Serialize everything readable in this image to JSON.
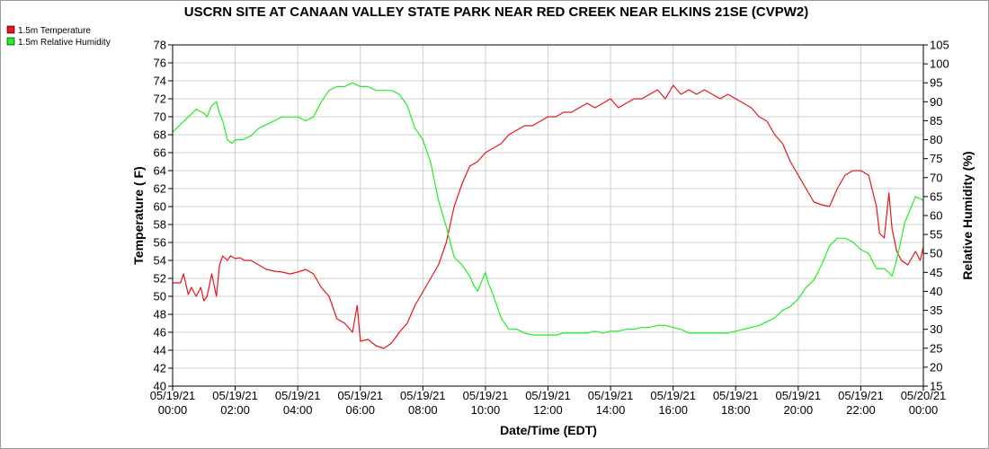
{
  "chart_data": {
    "type": "line",
    "title": "USCRN SITE AT CANAAN VALLEY STATE PARK NEAR RED CREEK NEAR ELKINS 21SE (CVPW2)",
    "xlabel": "Date/Time (EDT)",
    "ylabel_left": "Temperature ( F)",
    "ylabel_right": "Relative Humidity (%)",
    "ylim_left": [
      40,
      78
    ],
    "ylim_right": [
      15,
      105
    ],
    "yticks_left": [
      40,
      42,
      44,
      46,
      48,
      50,
      52,
      54,
      56,
      58,
      60,
      62,
      64,
      66,
      68,
      70,
      72,
      74,
      76,
      78
    ],
    "yticks_right": [
      15,
      20,
      25,
      30,
      35,
      40,
      45,
      50,
      55,
      60,
      65,
      70,
      75,
      80,
      85,
      90,
      95,
      100,
      105
    ],
    "xlim": [
      0,
      24
    ],
    "x_unit": "hours since 05/19/21 00:00",
    "x_tick_labels": [
      {
        "date": "05/19/21",
        "time": "00:00"
      },
      {
        "date": "05/19/21",
        "time": "02:00"
      },
      {
        "date": "05/19/21",
        "time": "04:00"
      },
      {
        "date": "05/19/21",
        "time": "06:00"
      },
      {
        "date": "05/19/21",
        "time": "08:00"
      },
      {
        "date": "05/19/21",
        "time": "10:00"
      },
      {
        "date": "05/19/21",
        "time": "12:00"
      },
      {
        "date": "05/19/21",
        "time": "14:00"
      },
      {
        "date": "05/19/21",
        "time": "16:00"
      },
      {
        "date": "05/19/21",
        "time": "18:00"
      },
      {
        "date": "05/19/21",
        "time": "20:00"
      },
      {
        "date": "05/19/21",
        "time": "22:00"
      },
      {
        "date": "05/20/21",
        "time": "00:00"
      }
    ],
    "grid": true,
    "legend_position": "top-left",
    "series": [
      {
        "name": "1.5m Temperature",
        "axis": "left",
        "color": "#e8141a",
        "x": [
          0.0,
          0.25,
          0.35,
          0.5,
          0.6,
          0.75,
          0.9,
          1.0,
          1.1,
          1.25,
          1.4,
          1.5,
          1.6,
          1.75,
          1.85,
          2.0,
          2.15,
          2.3,
          2.5,
          2.75,
          3.0,
          3.25,
          3.5,
          3.75,
          4.0,
          4.25,
          4.5,
          4.75,
          5.0,
          5.25,
          5.5,
          5.75,
          5.9,
          6.0,
          6.25,
          6.5,
          6.75,
          7.0,
          7.25,
          7.5,
          7.75,
          8.0,
          8.25,
          8.5,
          8.75,
          9.0,
          9.25,
          9.5,
          9.75,
          10.0,
          10.25,
          10.5,
          10.75,
          11.0,
          11.25,
          11.5,
          11.75,
          12.0,
          12.25,
          12.5,
          12.75,
          13.0,
          13.25,
          13.5,
          13.75,
          14.0,
          14.25,
          14.5,
          14.75,
          15.0,
          15.25,
          15.5,
          15.75,
          16.0,
          16.25,
          16.5,
          16.75,
          17.0,
          17.25,
          17.5,
          17.75,
          18.0,
          18.25,
          18.5,
          18.75,
          19.0,
          19.25,
          19.5,
          19.75,
          20.0,
          20.25,
          20.5,
          20.75,
          21.0,
          21.25,
          21.5,
          21.75,
          22.0,
          22.25,
          22.5,
          22.6,
          22.75,
          22.9,
          23.0,
          23.15,
          23.3,
          23.5,
          23.75,
          23.9,
          24.0
        ],
        "values": [
          51.5,
          51.5,
          52.5,
          50.2,
          51.0,
          50.0,
          51.0,
          49.5,
          50.0,
          52.5,
          50.0,
          53.5,
          54.5,
          54.0,
          54.5,
          54.2,
          54.3,
          54.0,
          54.0,
          53.5,
          53.0,
          52.8,
          52.7,
          52.5,
          52.7,
          53.0,
          52.5,
          51.0,
          50.0,
          47.5,
          47.0,
          46.0,
          49.0,
          45.0,
          45.2,
          44.5,
          44.2,
          44.8,
          46.0,
          47.0,
          49.0,
          50.5,
          52.0,
          53.5,
          56.0,
          60.0,
          62.5,
          64.5,
          65.0,
          66.0,
          66.5,
          67.0,
          68.0,
          68.5,
          69.0,
          69.0,
          69.5,
          70.0,
          70.0,
          70.5,
          70.5,
          71.0,
          71.5,
          71.0,
          71.5,
          72.0,
          71.0,
          71.5,
          72.0,
          72.0,
          72.5,
          73.0,
          72.0,
          73.5,
          72.5,
          73.0,
          72.5,
          73.0,
          72.5,
          72.0,
          72.5,
          72.0,
          71.5,
          71.0,
          70.0,
          69.5,
          68.0,
          67.0,
          65.0,
          63.5,
          62.0,
          60.5,
          60.2,
          60.0,
          62.0,
          63.5,
          64.0,
          64.0,
          63.5,
          60.0,
          57.0,
          56.5,
          61.5,
          57.5,
          55.0,
          54.0,
          53.5,
          55.0,
          54.0,
          55.5
        ]
      },
      {
        "name": "1.5m Relative Humidity",
        "axis": "right",
        "color": "#22ee22",
        "x": [
          0.0,
          0.25,
          0.5,
          0.75,
          1.0,
          1.1,
          1.25,
          1.4,
          1.5,
          1.6,
          1.75,
          1.9,
          2.0,
          2.25,
          2.5,
          2.75,
          3.0,
          3.25,
          3.5,
          3.75,
          4.0,
          4.25,
          4.5,
          4.75,
          5.0,
          5.25,
          5.5,
          5.75,
          6.0,
          6.25,
          6.5,
          6.75,
          7.0,
          7.25,
          7.5,
          7.75,
          8.0,
          8.25,
          8.5,
          8.75,
          9.0,
          9.25,
          9.5,
          9.6,
          9.75,
          9.9,
          10.0,
          10.1,
          10.25,
          10.5,
          10.75,
          11.0,
          11.25,
          11.5,
          11.75,
          12.0,
          12.25,
          12.5,
          12.75,
          13.0,
          13.25,
          13.5,
          13.75,
          14.0,
          14.25,
          14.5,
          14.75,
          15.0,
          15.25,
          15.5,
          15.75,
          16.0,
          16.25,
          16.5,
          16.75,
          17.0,
          17.25,
          17.5,
          17.75,
          18.0,
          18.25,
          18.5,
          18.75,
          19.0,
          19.25,
          19.5,
          19.75,
          20.0,
          20.25,
          20.5,
          20.75,
          21.0,
          21.25,
          21.5,
          21.75,
          22.0,
          22.25,
          22.5,
          22.75,
          22.9,
          23.0,
          23.1,
          23.25,
          23.4,
          23.5,
          23.75,
          24.0
        ],
        "values": [
          82,
          84,
          86,
          88,
          87,
          86,
          89,
          90,
          87,
          85,
          80,
          79,
          80,
          80,
          81,
          83,
          84,
          85,
          86,
          86,
          86,
          85,
          86,
          90,
          93,
          94,
          94,
          95,
          94,
          94,
          93,
          93,
          93,
          92,
          89,
          83,
          80,
          74,
          64,
          57,
          49,
          47,
          44,
          42,
          40,
          43,
          45,
          42,
          39,
          33,
          30,
          30,
          29,
          28.5,
          28.5,
          28.5,
          28.5,
          29,
          29,
          29,
          29,
          29.5,
          29,
          29.5,
          29.5,
          30,
          30,
          30.5,
          30.5,
          31,
          31,
          30.5,
          30,
          29,
          29,
          29,
          29,
          29,
          29,
          29.5,
          30,
          30.5,
          31,
          32,
          33,
          35,
          36,
          38,
          41,
          43,
          47,
          52,
          54,
          54,
          53,
          51,
          50,
          46,
          46,
          45,
          44,
          47,
          52,
          58,
          60,
          65,
          64
        ]
      }
    ]
  }
}
